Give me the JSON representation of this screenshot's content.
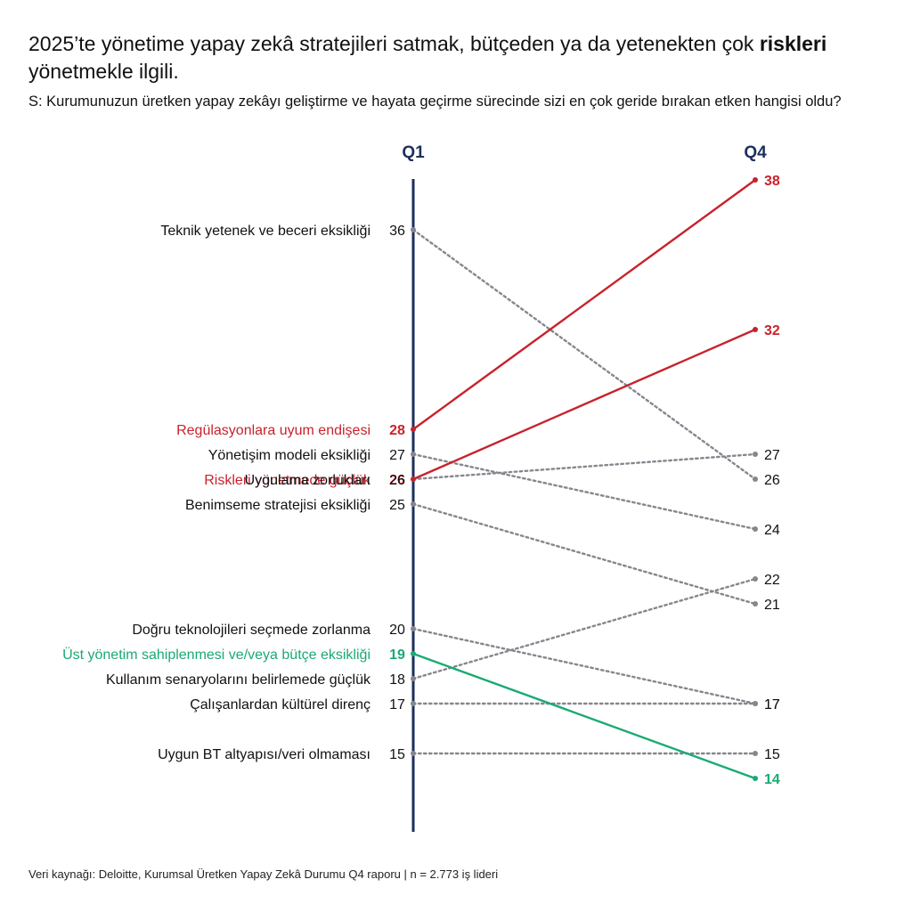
{
  "headline": {
    "part1": "2025’te yönetime yapay zekâ stratejileri satmak, bütçeden ya da yetenekten çok ",
    "highlight": "riskleri",
    "part2": " yönetmekle ilgili."
  },
  "question": "S: Kurumunuzun üretken yapay zekâyı geliştirme ve hayata geçirme sürecinde sizi en çok geride bırakan etken hangisi oldu?",
  "source": "Veri kaynağı: Deloitte, Kurumsal Üretken Yapay Zekâ Durumu Q4 raporu | n = 2.773 iş lideri",
  "colors": {
    "axis": "#1b2f5e",
    "red": "#c8222b",
    "green": "#1aaa72",
    "gray": "#86868e",
    "text": "#111111"
  },
  "chart_data": {
    "type": "slope",
    "title": "2025’te yönetime yapay zekâ stratejileri satmak, bütçeden ya da yetenekten çok riskleri yönetmekle ilgili.",
    "columns": [
      "Q1",
      "Q4"
    ],
    "ylim": [
      13,
      40
    ],
    "series": [
      {
        "name": "Teknik yetenek ve beceri eksikliği",
        "q1": 36,
        "q4": 26,
        "highlight": "none"
      },
      {
        "name": "Regülasyonlara uyum endişesi",
        "q1": 28,
        "q4": 38,
        "highlight": "red"
      },
      {
        "name": "Yönetişim modeli eksikliği",
        "q1": 27,
        "q4": 24,
        "highlight": "none"
      },
      {
        "name": "Riskleri yönetmede güçlük",
        "q1": 26,
        "q4": 32,
        "highlight": "red"
      },
      {
        "name": "Uygulama zorlukları",
        "q1": 26,
        "q4": 27,
        "highlight": "none"
      },
      {
        "name": "Benimseme stratejisi eksikliği",
        "q1": 25,
        "q4": 21,
        "highlight": "none"
      },
      {
        "name": "Doğru teknolojileri seçmede zorlanma",
        "q1": 20,
        "q4": 17,
        "highlight": "none"
      },
      {
        "name": "Üst yönetim sahiplenmesi ve/veya bütçe eksikliği",
        "q1": 19,
        "q4": 14,
        "highlight": "green"
      },
      {
        "name": "Kullanım senaryolarını belirlemede güçlük",
        "q1": 18,
        "q4": 22,
        "highlight": "none"
      },
      {
        "name": "Çalışanlardan kültürel direnç",
        "q1": 17,
        "q4": 17,
        "highlight": "none"
      },
      {
        "name": "Uygun BT altyapısı/veri olmaması",
        "q1": 15,
        "q4": 15,
        "highlight": "none"
      }
    ]
  }
}
